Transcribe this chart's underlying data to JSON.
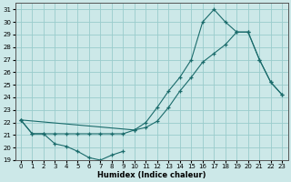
{
  "xlabel": "Humidex (Indice chaleur)",
  "bg_color": "#cce8e8",
  "grid_color": "#99cccc",
  "line_color": "#1a6b6b",
  "xlim": [
    -0.5,
    23.5
  ],
  "ylim": [
    19,
    31.5
  ],
  "yticks": [
    19,
    20,
    21,
    22,
    23,
    24,
    25,
    26,
    27,
    28,
    29,
    30,
    31
  ],
  "xticks": [
    0,
    1,
    2,
    3,
    4,
    5,
    6,
    7,
    8,
    9,
    10,
    11,
    12,
    13,
    14,
    15,
    16,
    17,
    18,
    19,
    20,
    21,
    22,
    23
  ],
  "line1_x": [
    0,
    1,
    2,
    3,
    4,
    5,
    6,
    7,
    8,
    9
  ],
  "line1_y": [
    22.2,
    21.1,
    21.1,
    20.3,
    20.1,
    19.7,
    19.2,
    19.0,
    19.4,
    19.7
  ],
  "line2_x": [
    0,
    1,
    2,
    3,
    4,
    5,
    6,
    7,
    8,
    9,
    10,
    11,
    12,
    13,
    14,
    15,
    16,
    17,
    18,
    19,
    20,
    21,
    22,
    23
  ],
  "line2_y": [
    22.2,
    21.1,
    21.1,
    21.1,
    21.1,
    21.1,
    21.1,
    21.1,
    21.1,
    21.1,
    21.4,
    21.6,
    22.1,
    23.2,
    24.5,
    25.6,
    26.8,
    27.5,
    28.2,
    29.2,
    29.2,
    27.0,
    25.2,
    24.2
  ],
  "line3_x": [
    0,
    10,
    11,
    12,
    13,
    14,
    15,
    16,
    17,
    18,
    19,
    20,
    21,
    22,
    23
  ],
  "line3_y": [
    22.2,
    21.4,
    22.0,
    23.2,
    24.5,
    25.6,
    27.0,
    30.0,
    31.0,
    30.0,
    29.2,
    29.2,
    27.0,
    25.2,
    24.2
  ]
}
